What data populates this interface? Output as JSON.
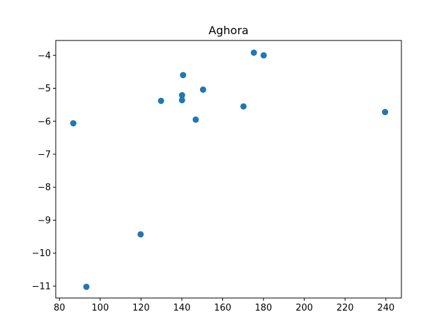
{
  "chart_data": {
    "type": "scatter",
    "title": "Aghora",
    "xlabel": "",
    "ylabel": "",
    "xlim": [
      78.2,
      247.6
    ],
    "ylim": [
      -11.36,
      -3.55
    ],
    "grid": false,
    "legend": "none",
    "marker_color": "#1f77b4",
    "x_ticks": [
      80,
      100,
      120,
      140,
      160,
      180,
      200,
      220,
      240
    ],
    "x_tick_labels": [
      "80",
      "100",
      "120",
      "140",
      "160",
      "180",
      "200",
      "220",
      "240"
    ],
    "y_ticks": [
      -4,
      -5,
      -6,
      -7,
      -8,
      -9,
      -10,
      -11
    ],
    "y_tick_labels": [
      "−4",
      "−5",
      "−6",
      "−7",
      "−8",
      "−9",
      "−10",
      "−11"
    ],
    "points": [
      {
        "x": 86.8,
        "y": -6.06
      },
      {
        "x": 93.2,
        "y": -11.02
      },
      {
        "x": 119.8,
        "y": -9.43
      },
      {
        "x": 129.8,
        "y": -5.38
      },
      {
        "x": 140.1,
        "y": -5.36
      },
      {
        "x": 140.1,
        "y": -5.21
      },
      {
        "x": 140.6,
        "y": -4.6
      },
      {
        "x": 146.8,
        "y": -5.95
      },
      {
        "x": 150.4,
        "y": -5.04
      },
      {
        "x": 170.2,
        "y": -5.55
      },
      {
        "x": 175.3,
        "y": -3.92
      },
      {
        "x": 180.1,
        "y": -4.0
      },
      {
        "x": 239.6,
        "y": -5.72
      }
    ]
  }
}
